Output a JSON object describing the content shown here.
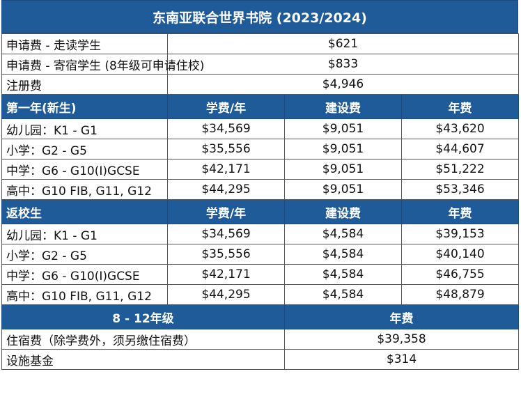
{
  "title": "东南亚联合世界书院 (2023/2024)",
  "fees": [
    {
      "label": "申请费 - 走读学生",
      "value": "$621"
    },
    {
      "label": "申请费 - 寄宿学生 (8年级可申请住校)",
      "value": "$833"
    },
    {
      "label": "注册费",
      "value": "$4,946"
    }
  ],
  "new_students": {
    "header": [
      "第一年(新生)",
      "学费/年",
      "建设费",
      "年费"
    ],
    "rows": [
      [
        "幼儿园：K1 - G1",
        "$34,569",
        "$9,051",
        "$43,620"
      ],
      [
        "小学：G2 - G5",
        "$35,556",
        "$9,051",
        "$44,607"
      ],
      [
        "中学：G6 - G10(I)GCSE",
        "$42,171",
        "$9,051",
        "$51,222"
      ],
      [
        "高中：G10 FIB, G11, G12",
        "$44,295",
        "$9,051",
        "$53,346"
      ]
    ]
  },
  "returning_students": {
    "header": [
      "返校生",
      "学费/年",
      "建设费",
      "年费"
    ],
    "rows": [
      [
        "幼儿园：K1 - G1",
        "$34,569",
        "$4,584",
        "$39,153"
      ],
      [
        "小学：G2 - G5",
        "$35,556",
        "$4,584",
        "$40,140"
      ],
      [
        "中学：G6 - G10(I)GCSE",
        "$42,171",
        "$4,584",
        "$46,755"
      ],
      [
        "高中：G10 FIB, G11, G12",
        "$44,295",
        "$4,584",
        "$48,879"
      ]
    ]
  },
  "boarding": {
    "header": [
      "8 - 12年级",
      "年费"
    ],
    "rows": [
      {
        "label": "住宿费（除学费外，须另缴住宿费）",
        "value": "$39,358"
      },
      {
        "label": "设施基金",
        "value": "$314"
      }
    ]
  }
}
